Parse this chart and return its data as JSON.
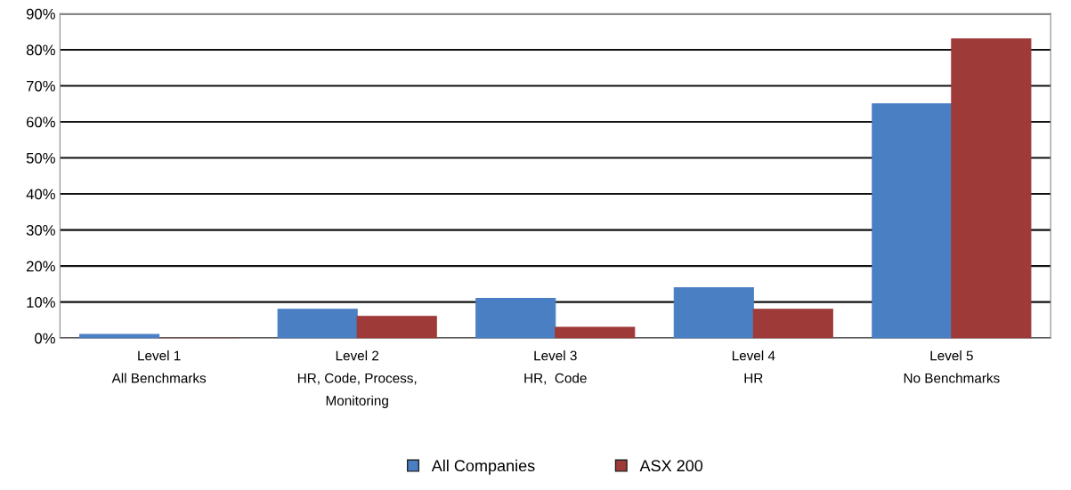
{
  "chart_data": {
    "type": "bar",
    "categories": [
      "Level 1\nAll Benchmarks",
      "Level 2\nHR, Code, Process,\nMonitoring",
      "Level 3\nHR,  Code",
      "Level 4\nHR",
      "Level 5\nNo Benchmarks"
    ],
    "series": [
      {
        "name": "All Companies",
        "color": "#4a7fc4",
        "values": [
          1,
          8,
          11,
          14,
          65
        ]
      },
      {
        "name": "ASX 200",
        "color": "#9e3a38",
        "values": [
          0,
          6,
          3,
          8,
          83
        ]
      }
    ],
    "ylim": [
      0,
      90
    ],
    "yticks": [
      {
        "value": 0,
        "label": "0%"
      },
      {
        "value": 10,
        "label": "10%"
      },
      {
        "value": 20,
        "label": "20%"
      },
      {
        "value": 30,
        "label": "30%"
      },
      {
        "value": 40,
        "label": "40%"
      },
      {
        "value": 50,
        "label": "50%"
      },
      {
        "value": 60,
        "label": "60%"
      },
      {
        "value": 70,
        "label": "70%"
      },
      {
        "value": 80,
        "label": "80%"
      },
      {
        "value": 90,
        "label": "90%"
      }
    ],
    "grid": "y",
    "legend": "bottom"
  }
}
